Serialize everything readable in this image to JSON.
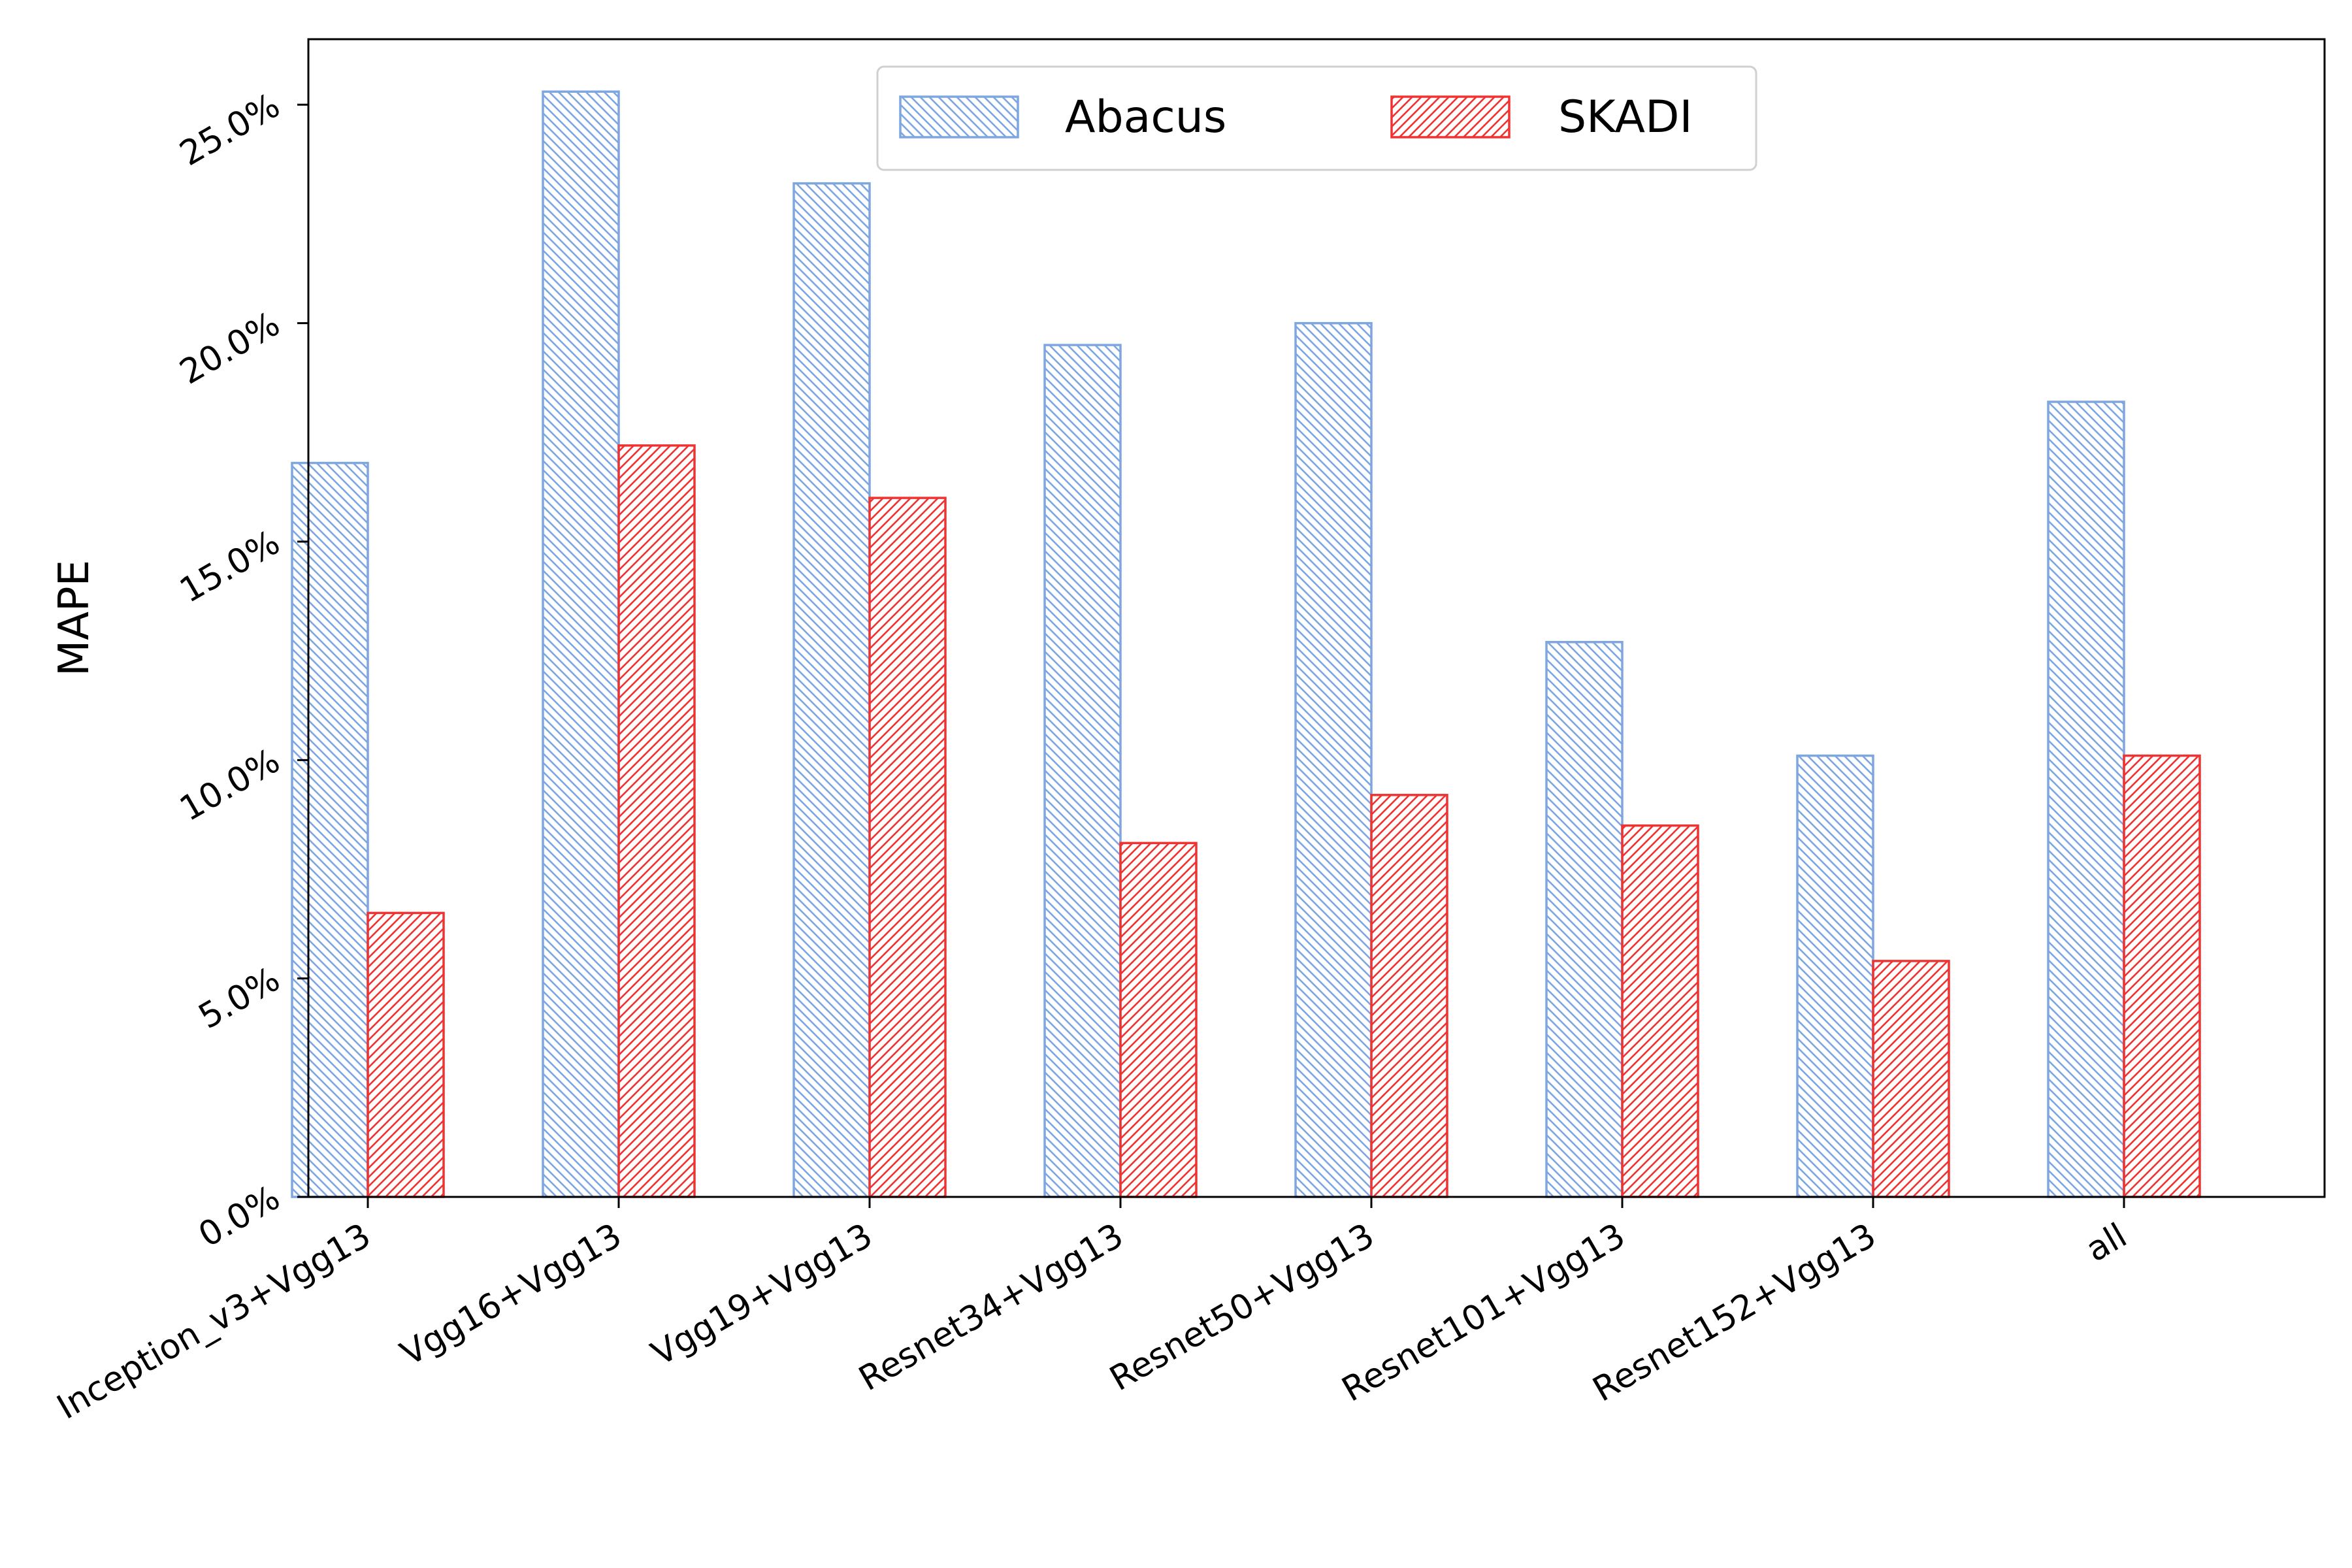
{
  "chart_data": {
    "type": "bar",
    "title": "",
    "xlabel": "",
    "ylabel": "MAPE",
    "categories": [
      "Inception_v3+Vgg13",
      "Vgg16+Vgg13",
      "Vgg19+Vgg13",
      "Resnet34+Vgg13",
      "Resnet50+Vgg13",
      "Resnet101+Vgg13",
      "Resnet152+Vgg13",
      "all"
    ],
    "series": [
      {
        "name": "Abacus",
        "color": "#7ea6e0",
        "hatch": "backslash",
        "values": [
          16.8,
          25.3,
          23.2,
          19.5,
          20.0,
          12.7,
          10.1,
          18.2
        ]
      },
      {
        "name": "SKADI",
        "color": "#f03232",
        "hatch": "slash",
        "values": [
          6.5,
          17.2,
          16.0,
          8.1,
          9.2,
          8.5,
          5.4,
          10.1
        ]
      }
    ],
    "ylim": [
      0,
      26.5
    ],
    "yticks": [
      0,
      5,
      10,
      15,
      20,
      25
    ],
    "ytick_labels": [
      "0.0%",
      "5.0%",
      "10.0%",
      "15.0%",
      "20.0%",
      "25.0%"
    ],
    "grid": false,
    "legend_position": "top-center"
  }
}
